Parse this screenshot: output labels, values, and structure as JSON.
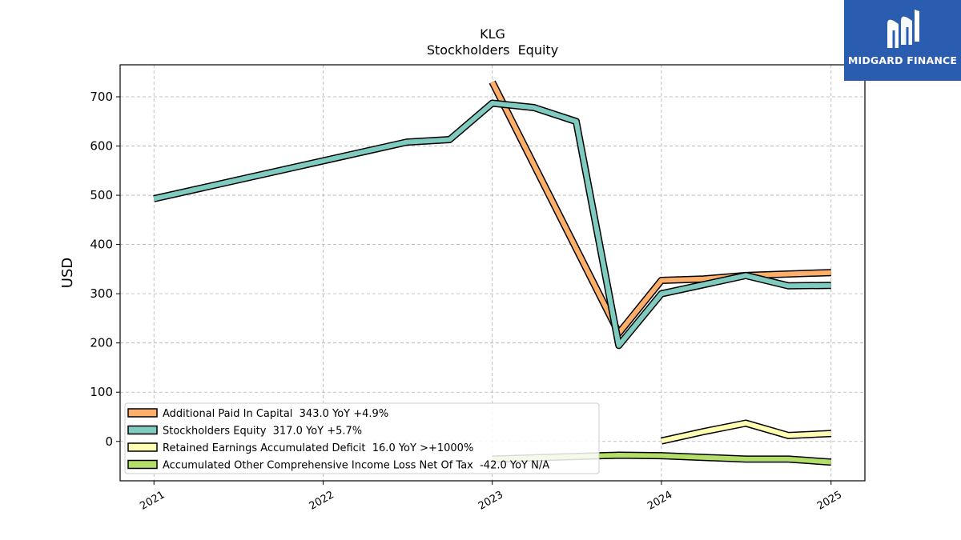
{
  "chart_data": {
    "type": "line",
    "title": "KLG",
    "subtitle": "Stockholders  Equity",
    "xlabel": "",
    "ylabel": "USD",
    "xlim": [
      "2020-10-20",
      "2025-03-15"
    ],
    "ylim": [
      -80,
      765
    ],
    "x_ticks": [
      "2021",
      "2022",
      "2023",
      "2024",
      "2025"
    ],
    "y_ticks": [
      0,
      100,
      200,
      300,
      400,
      500,
      600,
      700
    ],
    "grid": true,
    "legend_position": "lower-left",
    "series": [
      {
        "name": "Additional Paid In Capital  343.0 YoY +4.9%",
        "color": "#fdae6b",
        "points": [
          {
            "x": "2023-01-01",
            "y": 730
          },
          {
            "x": "2023-10-01",
            "y": 220
          },
          {
            "x": "2024-01-01",
            "y": 327
          },
          {
            "x": "2024-04-01",
            "y": 330
          },
          {
            "x": "2024-07-01",
            "y": 337
          },
          {
            "x": "2024-10-01",
            "y": 340
          },
          {
            "x": "2025-01-01",
            "y": 343
          }
        ]
      },
      {
        "name": "Stockholders Equity  317.0 YoY +5.7%",
        "color": "#80cbc0",
        "points": [
          {
            "x": "2021-01-01",
            "y": 493
          },
          {
            "x": "2022-07-01",
            "y": 608
          },
          {
            "x": "2022-10-01",
            "y": 613
          },
          {
            "x": "2023-01-01",
            "y": 687
          },
          {
            "x": "2023-04-01",
            "y": 678
          },
          {
            "x": "2023-07-01",
            "y": 650
          },
          {
            "x": "2023-10-01",
            "y": 195
          },
          {
            "x": "2024-01-01",
            "y": 300
          },
          {
            "x": "2024-07-01",
            "y": 337
          },
          {
            "x": "2024-10-01",
            "y": 316
          },
          {
            "x": "2025-01-01",
            "y": 317
          }
        ]
      },
      {
        "name": "Retained Earnings Accumulated Deficit  16.0 YoY >+1000%",
        "color": "#ffffb3",
        "points": [
          {
            "x": "2024-01-01",
            "y": 1
          },
          {
            "x": "2024-04-01",
            "y": 20
          },
          {
            "x": "2024-07-01",
            "y": 37
          },
          {
            "x": "2024-10-01",
            "y": 12
          },
          {
            "x": "2025-01-01",
            "y": 16
          }
        ]
      },
      {
        "name": "Accumulated Other Comprehensive Income Loss Net Of Tax  -42.0 YoY N/A",
        "color": "#b3de69",
        "points": [
          {
            "x": "2023-01-01",
            "y": -36
          },
          {
            "x": "2023-10-01",
            "y": -28
          },
          {
            "x": "2024-01-01",
            "y": -29
          },
          {
            "x": "2024-07-01",
            "y": -36
          },
          {
            "x": "2024-10-01",
            "y": -36
          },
          {
            "x": "2025-01-01",
            "y": -42
          }
        ]
      }
    ]
  },
  "logo": {
    "text": "MIDGARD FINANCE",
    "icon": "midgard-m-logo-icon",
    "background": "#2a5db0"
  }
}
